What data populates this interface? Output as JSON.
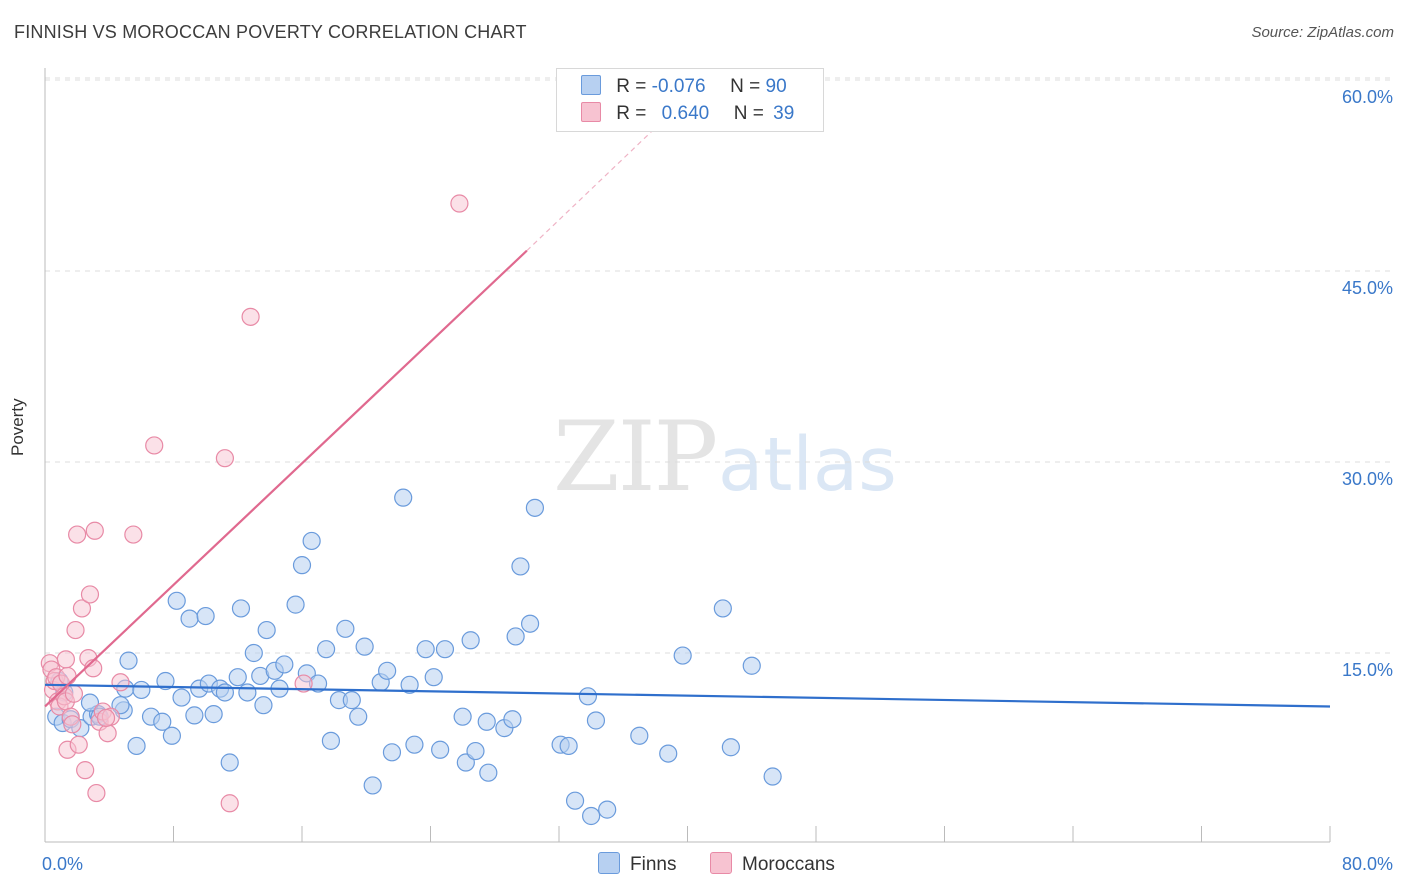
{
  "title": "FINNISH VS MOROCCAN POVERTY CORRELATION CHART",
  "source": "Source: ZipAtlas.com",
  "watermark": {
    "zip": "ZIP",
    "atlas": "atlas"
  },
  "legend_top": [
    {
      "r_label": "R =",
      "r_value": "-0.076",
      "n_label": "N =",
      "n_value": "90"
    },
    {
      "r_label": "R =",
      "r_value": "0.640",
      "n_label": "N =",
      "n_value": "39"
    }
  ],
  "legend_bottom": [
    "Finns",
    "Moroccans"
  ],
  "colors": {
    "finns_fill": "#b7d0f1",
    "finns_stroke": "#6a9bdc",
    "finns_line": "#2f6fcc",
    "moroccans_fill": "#f7c3d1",
    "moroccans_stroke": "#e88aa6",
    "moroccans_line": "#e0698f",
    "tick_label": "#3a78c9",
    "grid": "#dcdcdc"
  },
  "chart_data": {
    "type": "scatter",
    "title": "FINNISH VS MOROCCAN POVERTY CORRELATION CHART",
    "xlabel": "",
    "ylabel": "Poverty",
    "xlim": [
      0,
      80
    ],
    "ylim": [
      0,
      60
    ],
    "x_tick_labels": [
      "0.0%",
      "80.0%"
    ],
    "y_ticks": [
      15,
      30,
      45,
      60
    ],
    "y_tick_labels": [
      "15.0%",
      "30.0%",
      "45.0%",
      "60.0%"
    ],
    "grid": "horizontal dashed",
    "legend_placement": "top-center",
    "series": [
      {
        "name": "Finns",
        "r": -0.076,
        "n": 90,
        "trend": {
          "x": [
            0,
            80
          ],
          "y": [
            12.5,
            10.8
          ]
        },
        "points": [
          [
            0.7,
            10.0
          ],
          [
            0.9,
            12.8
          ],
          [
            1.1,
            9.5
          ],
          [
            1.6,
            9.8
          ],
          [
            2.2,
            9.1
          ],
          [
            2.9,
            10.0
          ],
          [
            3.3,
            10.2
          ],
          [
            3.4,
            10.0
          ],
          [
            4.9,
            10.5
          ],
          [
            4.7,
            10.9
          ],
          [
            5.0,
            12.2
          ],
          [
            5.2,
            14.4
          ],
          [
            5.7,
            7.7
          ],
          [
            6.0,
            12.1
          ],
          [
            6.6,
            10.0
          ],
          [
            7.3,
            9.6
          ],
          [
            7.5,
            12.8
          ],
          [
            7.9,
            8.5
          ],
          [
            8.2,
            19.1
          ],
          [
            8.5,
            11.5
          ],
          [
            9.0,
            17.7
          ],
          [
            9.3,
            10.1
          ],
          [
            9.6,
            12.2
          ],
          [
            10.0,
            17.9
          ],
          [
            10.2,
            12.6
          ],
          [
            10.5,
            10.2
          ],
          [
            10.9,
            12.2
          ],
          [
            11.2,
            11.9
          ],
          [
            11.5,
            6.4
          ],
          [
            12.0,
            13.1
          ],
          [
            12.2,
            18.5
          ],
          [
            12.6,
            11.9
          ],
          [
            13.0,
            15.0
          ],
          [
            13.4,
            13.2
          ],
          [
            13.6,
            10.9
          ],
          [
            13.8,
            16.8
          ],
          [
            14.3,
            13.6
          ],
          [
            14.6,
            12.2
          ],
          [
            14.9,
            14.1
          ],
          [
            15.6,
            18.8
          ],
          [
            16.0,
            21.9
          ],
          [
            16.3,
            13.4
          ],
          [
            16.6,
            23.8
          ],
          [
            17.0,
            12.6
          ],
          [
            17.5,
            15.3
          ],
          [
            17.8,
            8.1
          ],
          [
            18.3,
            11.3
          ],
          [
            18.7,
            16.9
          ],
          [
            19.1,
            11.3
          ],
          [
            19.5,
            10.0
          ],
          [
            19.9,
            15.5
          ],
          [
            20.4,
            4.6
          ],
          [
            20.9,
            12.7
          ],
          [
            21.3,
            13.6
          ],
          [
            21.6,
            7.2
          ],
          [
            22.3,
            27.2
          ],
          [
            22.7,
            12.5
          ],
          [
            23.0,
            7.8
          ],
          [
            23.7,
            15.3
          ],
          [
            24.2,
            13.1
          ],
          [
            24.6,
            7.4
          ],
          [
            24.9,
            15.3
          ],
          [
            26.0,
            10.0
          ],
          [
            26.2,
            6.4
          ],
          [
            26.5,
            16.0
          ],
          [
            26.8,
            7.3
          ],
          [
            27.5,
            9.6
          ],
          [
            27.6,
            5.6
          ],
          [
            28.6,
            9.1
          ],
          [
            29.1,
            9.8
          ],
          [
            29.3,
            16.3
          ],
          [
            29.6,
            21.8
          ],
          [
            30.2,
            17.3
          ],
          [
            30.5,
            26.4
          ],
          [
            32.1,
            7.8
          ],
          [
            32.6,
            7.7
          ],
          [
            33.0,
            3.4
          ],
          [
            33.8,
            11.6
          ],
          [
            34.0,
            2.2
          ],
          [
            34.3,
            9.7
          ],
          [
            35.0,
            2.7
          ],
          [
            37.0,
            8.5
          ],
          [
            38.8,
            7.1
          ],
          [
            39.7,
            14.8
          ],
          [
            42.2,
            18.5
          ],
          [
            42.7,
            7.6
          ],
          [
            44.0,
            14.0
          ],
          [
            45.3,
            5.3
          ],
          [
            1.2,
            11.9
          ],
          [
            2.8,
            11.1
          ]
        ]
      },
      {
        "name": "Moroccans",
        "r": 0.64,
        "n": 39,
        "trend": {
          "x": [
            0,
            30
          ],
          "y": [
            10.8,
            46.6
          ]
        },
        "trend_dashed": {
          "x": [
            30,
            37.8
          ],
          "y": [
            46.6,
            56.0
          ]
        },
        "points": [
          [
            0.3,
            14.2
          ],
          [
            0.4,
            13.7
          ],
          [
            0.5,
            12.1
          ],
          [
            0.6,
            12.8
          ],
          [
            0.7,
            13.1
          ],
          [
            0.8,
            11.2
          ],
          [
            0.9,
            10.8
          ],
          [
            1.0,
            12.6
          ],
          [
            1.2,
            11.6
          ],
          [
            1.3,
            11.2
          ],
          [
            1.4,
            13.2
          ],
          [
            1.3,
            14.5
          ],
          [
            1.4,
            7.4
          ],
          [
            1.6,
            10.0
          ],
          [
            1.7,
            9.4
          ],
          [
            1.8,
            11.8
          ],
          [
            1.9,
            16.8
          ],
          [
            2.0,
            24.3
          ],
          [
            2.1,
            7.8
          ],
          [
            2.3,
            18.5
          ],
          [
            2.5,
            5.8
          ],
          [
            2.7,
            14.6
          ],
          [
            2.8,
            19.6
          ],
          [
            3.0,
            13.8
          ],
          [
            3.1,
            24.6
          ],
          [
            3.2,
            4.0
          ],
          [
            3.4,
            9.6
          ],
          [
            3.6,
            10.4
          ],
          [
            3.9,
            8.7
          ],
          [
            4.1,
            10.0
          ],
          [
            4.7,
            12.7
          ],
          [
            5.5,
            24.3
          ],
          [
            6.8,
            31.3
          ],
          [
            11.2,
            30.3
          ],
          [
            11.5,
            3.2
          ],
          [
            12.8,
            41.4
          ],
          [
            16.1,
            12.6
          ],
          [
            25.8,
            50.3
          ],
          [
            3.8,
            9.9
          ]
        ]
      }
    ]
  }
}
